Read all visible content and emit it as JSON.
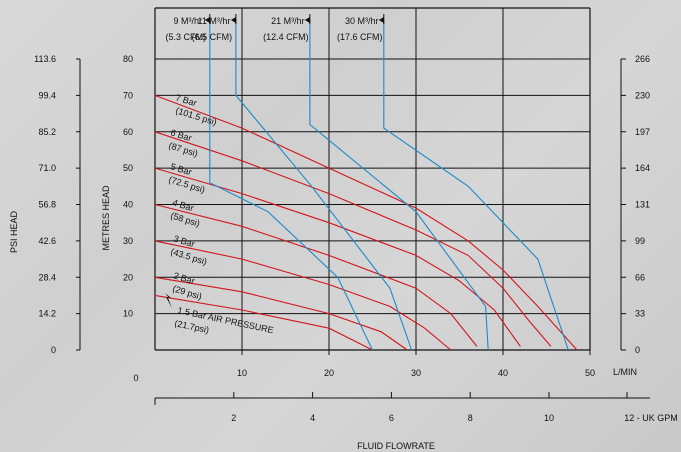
{
  "chart_data": {
    "type": "line",
    "xlabel": "FLUID FLOWRATE",
    "ylabel_left_outer": "PSI HEAD",
    "ylabel_left_inner": "METRES HEAD",
    "x_lpm": {
      "ticks": [
        0,
        10,
        20,
        30,
        40,
        50
      ],
      "unit_label": "L/MIN",
      "range": [
        0,
        50
      ]
    },
    "x_gpm": {
      "ticks": [
        2,
        4,
        6,
        8,
        10
      ],
      "unit_label": "12 - UK GPM",
      "range": [
        0,
        12
      ]
    },
    "y_metres": {
      "ticks": [
        10,
        20,
        30,
        40,
        50,
        60,
        70,
        80
      ],
      "range": [
        0,
        80
      ]
    },
    "y_psi": {
      "ticks": [
        "0",
        "14.2",
        "28.4",
        "42.6",
        "56.8",
        "71.0",
        "85.2",
        "99.4",
        "113.6"
      ]
    },
    "y_right": {
      "ticks": [
        "0",
        "33",
        "66",
        "99",
        "131",
        "164",
        "197",
        "230",
        "266"
      ]
    },
    "grid": true,
    "air_pressure_curves": [
      {
        "bar": "7 Bar",
        "psi": "(101.5 psi)",
        "points": [
          [
            0,
            70
          ],
          [
            10,
            61
          ],
          [
            20,
            50
          ],
          [
            30,
            39
          ],
          [
            36,
            30
          ],
          [
            40,
            22
          ],
          [
            44,
            12
          ],
          [
            47,
            4
          ],
          [
            48.5,
            0
          ]
        ]
      },
      {
        "bar": "6 Bar",
        "psi": "(87 psi)",
        "points": [
          [
            0,
            60
          ],
          [
            10,
            52
          ],
          [
            20,
            43
          ],
          [
            30,
            33
          ],
          [
            36,
            26
          ],
          [
            40,
            17
          ],
          [
            43,
            8
          ],
          [
            45.5,
            1
          ]
        ]
      },
      {
        "bar": "5 Bar",
        "psi": "(72.5 psi)",
        "points": [
          [
            0,
            50
          ],
          [
            10,
            43
          ],
          [
            20,
            35
          ],
          [
            30,
            26
          ],
          [
            35,
            19
          ],
          [
            39,
            11
          ],
          [
            42,
            1
          ]
        ]
      },
      {
        "bar": "4 Bar",
        "psi": "(58 psi)",
        "points": [
          [
            0,
            40
          ],
          [
            10,
            34
          ],
          [
            20,
            26
          ],
          [
            30,
            17
          ],
          [
            34,
            10
          ],
          [
            37,
            1
          ]
        ]
      },
      {
        "bar": "3 Bar",
        "psi": "(43.5 psi)",
        "points": [
          [
            0,
            30
          ],
          [
            10,
            25
          ],
          [
            20,
            18
          ],
          [
            27,
            12
          ],
          [
            31,
            6
          ],
          [
            34,
            0
          ]
        ]
      },
      {
        "bar": "2 Bar",
        "psi": "(29 psi)",
        "points": [
          [
            0,
            20
          ],
          [
            10,
            16
          ],
          [
            20,
            10
          ],
          [
            26,
            5
          ],
          [
            29,
            0
          ]
        ]
      },
      {
        "bar": "1.5 Bar AIR PRESSURE",
        "psi": "(21.7psi)",
        "points": [
          [
            0,
            15
          ],
          [
            10,
            11
          ],
          [
            20,
            6
          ],
          [
            25,
            0
          ]
        ]
      }
    ],
    "air_consumption_curves": [
      {
        "label_m3": "9 M³/hr",
        "label_cfm": "(5.3 CFM)",
        "points": [
          [
            6.3,
            92
          ],
          [
            6.3,
            46
          ],
          [
            13,
            38
          ],
          [
            21,
            20
          ],
          [
            25,
            0
          ]
        ]
      },
      {
        "label_m3": "11 M³/hr",
        "label_cfm": "(6.5 CFM)",
        "points": [
          [
            9.3,
            92
          ],
          [
            9.3,
            70
          ],
          [
            18,
            45
          ],
          [
            27,
            17
          ],
          [
            29.5,
            0
          ]
        ]
      },
      {
        "label_m3": "21 M³/hr",
        "label_cfm": "(12.4 CFM)",
        "points": [
          [
            17.8,
            92
          ],
          [
            17.8,
            62
          ],
          [
            30,
            38
          ],
          [
            38,
            12
          ],
          [
            38.3,
            0
          ]
        ]
      },
      {
        "label_m3": "30 M³/hr",
        "label_cfm": "(17.6 CFM)",
        "points": [
          [
            26.3,
            92
          ],
          [
            26.3,
            61
          ],
          [
            36,
            45
          ],
          [
            44,
            25
          ],
          [
            47.5,
            0
          ]
        ]
      }
    ],
    "colors": {
      "pressure": "#d2161c",
      "air": "#1d8bc7",
      "grid": "#111111",
      "background": "#d4d4d4"
    }
  }
}
